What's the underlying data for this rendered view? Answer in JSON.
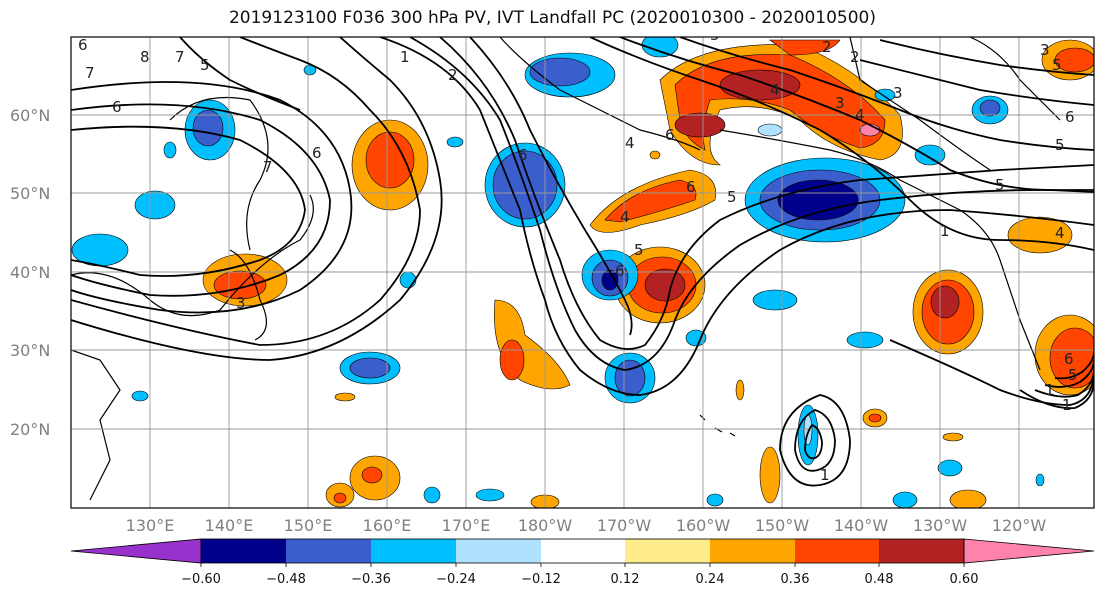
{
  "title": "2019123100 F036 300 hPa PV, IVT Landfall PC (2020010300 - 2020010500)",
  "lat_labels": [
    "60°N",
    "50°N",
    "40°N",
    "30°N",
    "20°N"
  ],
  "lon_labels": [
    "130°E",
    "140°E",
    "150°E",
    "160°E",
    "170°E",
    "180°W",
    "170°W",
    "160°W",
    "150°W",
    "140°W",
    "130°W",
    "120°W"
  ],
  "colorbar": {
    "ticks": [
      "−0.60",
      "−0.48",
      "−0.36",
      "−0.24",
      "−0.12",
      "0.12",
      "0.24",
      "0.36",
      "0.48",
      "0.60"
    ],
    "colors": [
      "#9932cc",
      "#00008b",
      "#3a5fcd",
      "#00bfff",
      "#b0e2ff",
      "#ffffff",
      "#ffec8b",
      "#ffa500",
      "#ff4500",
      "#b22222",
      "#ff82ab"
    ]
  },
  "contour_labels": [
    "6",
    "8",
    "7",
    "5",
    "7",
    "6",
    "1",
    "2",
    "6",
    "2",
    "3",
    "4",
    "5",
    "6",
    "6",
    "7",
    "1",
    "2",
    "3",
    "4",
    "5",
    "3",
    "4",
    "5",
    "6",
    "4",
    "5",
    "6",
    "6",
    "5",
    "1",
    "1",
    "4",
    "5",
    "3",
    "1",
    "5",
    "6"
  ]
}
